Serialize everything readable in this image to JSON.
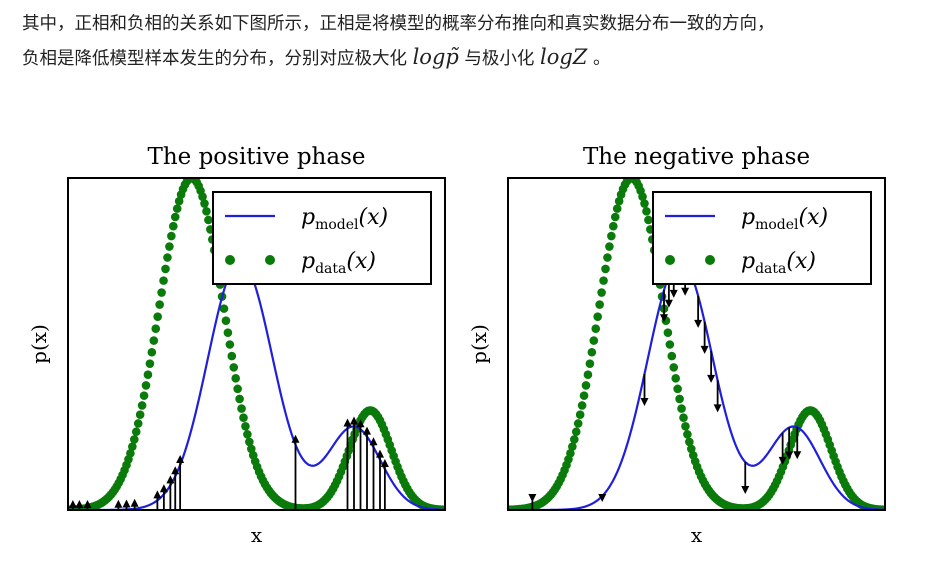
{
  "text": {
    "line1": "其中，正相和负相的关系如下图所示，正相是将模型的概率分布推向和真实数据分布一致的方向，",
    "line2_pre": "负相是降低模型样本发生的分布，分别对应极大化",
    "math1": "logp̃",
    "line2_mid": "与极小化",
    "math2": "logZ",
    "line2_post": "。"
  },
  "colors": {
    "model": "#1f1fdc",
    "data": "#0a7a0a",
    "arrow": "#000000"
  },
  "chart_data": [
    {
      "type": "line",
      "title": "The positive phase",
      "xlabel": "x",
      "ylabel": "p(x)",
      "grid": false,
      "legend_placement": "top-right",
      "legend": [
        {
          "series": "model",
          "main": "p",
          "sub": "model",
          "arg": "(x)"
        },
        {
          "series": "data",
          "main": "p",
          "sub": "data",
          "arg": "(x)"
        }
      ],
      "xlim": [
        -5.3,
        6.3
      ],
      "ylim": [
        0,
        1.0
      ],
      "series": [
        {
          "id": "model",
          "style": "line",
          "components": [
            {
              "weight": 0.75,
              "mean": 0,
              "sd": 1.0
            },
            {
              "weight": 0.25,
              "mean": 3.5,
              "sd": 0.8
            }
          ]
        },
        {
          "id": "data",
          "style": "dots",
          "components": [
            {
              "weight": 1.0,
              "mean": -1.5,
              "sd": 1.0
            },
            {
              "weight": 0.3,
              "mean": 4.0,
              "sd": 0.65
            }
          ]
        }
      ],
      "arrows": {
        "direction": "up",
        "x": [
          -5.15,
          -4.95,
          -4.7,
          -3.75,
          -3.5,
          -3.25,
          -2.55,
          -2.35,
          -2.15,
          -2.0,
          -1.85,
          3.3,
          3.5,
          3.7,
          3.9,
          4.1,
          4.3,
          4.45,
          1.7
        ]
      }
    },
    {
      "type": "line",
      "title": "The negative phase",
      "xlabel": "x",
      "ylabel": "p(x)",
      "grid": false,
      "legend_placement": "top-right",
      "legend": [
        {
          "series": "model",
          "main": "p",
          "sub": "model",
          "arg": "(x)"
        },
        {
          "series": "data",
          "main": "p",
          "sub": "data",
          "arg": "(x)"
        }
      ],
      "xlim": [
        -5.3,
        6.3
      ],
      "ylim": [
        0,
        1.0
      ],
      "series": [
        {
          "id": "model",
          "style": "line",
          "components": [
            {
              "weight": 0.75,
              "mean": 0,
              "sd": 1.0
            },
            {
              "weight": 0.25,
              "mean": 3.5,
              "sd": 0.8
            }
          ]
        },
        {
          "id": "data",
          "style": "dots",
          "components": [
            {
              "weight": 1.0,
              "mean": -1.5,
              "sd": 1.0
            },
            {
              "weight": 0.3,
              "mean": 4.0,
              "sd": 0.65
            }
          ]
        }
      ],
      "arrows": {
        "direction": "down",
        "x": [
          -2.4,
          -1.1,
          -0.5,
          -0.35,
          -0.2,
          0.15,
          0.55,
          0.75,
          0.95,
          1.15,
          2.0,
          3.15,
          3.35,
          3.6,
          -4.55
        ]
      }
    }
  ]
}
